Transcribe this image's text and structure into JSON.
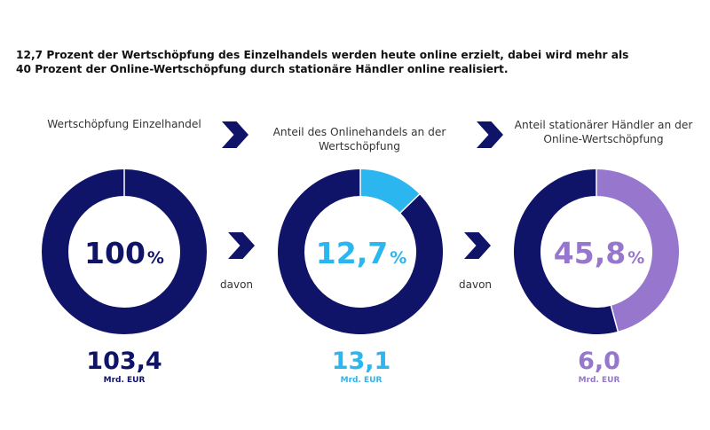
{
  "headline": {
    "line1": "12,7 Prozent der Wertschöpfung des Einzelhandels werden heute online erzielt, dabei wird mehr als",
    "line2": "40 Prozent der Online-Wertschöpfung durch stationäre Händler online realisiert."
  },
  "colors": {
    "navy": "#0f1468",
    "cyan": "#2bb6ef",
    "purple": "#9677cd"
  },
  "connector_label": "davon",
  "chart_data": [
    {
      "type": "pie",
      "label": "Wertschöpfung Einzelhandel",
      "percent_value": 100,
      "percent_text": "100",
      "percent_unit": "%",
      "absolute_value": 103.4,
      "absolute_text": "103,4",
      "absolute_unit": "Mrd. EUR",
      "color": "#0f1468"
    },
    {
      "type": "pie",
      "label": "Anteil des Onlinehandels an der Wertschöpfung",
      "label_lines": [
        "Anteil des Onlinehandels an der",
        "Wertschöpfung"
      ],
      "percent_value": 12.7,
      "percent_text": "12,7",
      "percent_unit": "%",
      "absolute_value": 13.1,
      "absolute_text": "13,1",
      "absolute_unit": "Mrd. EUR",
      "color": "#2bb6ef"
    },
    {
      "type": "pie",
      "label": "Anteil stationärer Händler an der Online-Wertschöpfung",
      "label_lines": [
        "Anteil stationärer Händler an der",
        "Online-Wertschöpfung"
      ],
      "percent_value": 45.8,
      "percent_text": "45,8",
      "percent_unit": "%",
      "absolute_value": 6.0,
      "absolute_text": "6,0",
      "absolute_unit": "Mrd. EUR",
      "color": "#9677cd"
    }
  ]
}
